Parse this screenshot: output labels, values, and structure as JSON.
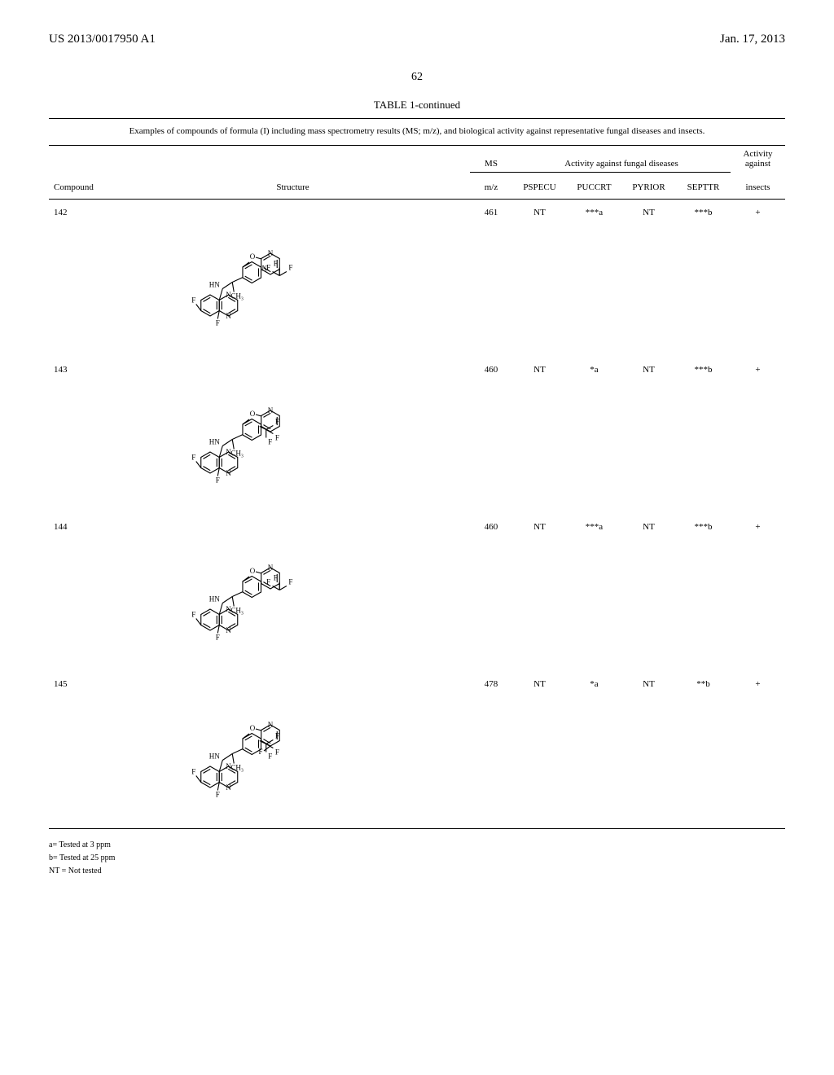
{
  "header": {
    "pub_number": "US 2013/0017950 A1",
    "pub_date": "Jan. 17, 2013"
  },
  "page_number": "62",
  "table": {
    "title": "TABLE 1-continued",
    "caption": "Examples of compounds of formula (I) including mass spectrometry results (MS; m/z), and biological activity against representative fungal diseases and insects.",
    "columns": {
      "compound": "Compound",
      "structure": "Structure",
      "ms_group": "MS",
      "ms_sub": "m/z",
      "fungal_group": "Activity against fungal diseases",
      "pspecu": "PSPECU",
      "puccrt": "PUCCRT",
      "pyrior": "PYRIOR",
      "septtr": "SEPTTR",
      "insects_group": "Activity against",
      "insects_sub": "insects"
    },
    "rows": [
      {
        "compound": "142",
        "mz": "461",
        "pspecu": "NT",
        "puccrt": "***a",
        "pyrior": "NT",
        "septtr": "***b",
        "insects": "+"
      },
      {
        "compound": "143",
        "mz": "460",
        "pspecu": "NT",
        "puccrt": "*a",
        "pyrior": "NT",
        "septtr": "***b",
        "insects": "+"
      },
      {
        "compound": "144",
        "mz": "460",
        "pspecu": "NT",
        "puccrt": "***a",
        "pyrior": "NT",
        "septtr": "***b",
        "insects": "+"
      },
      {
        "compound": "145",
        "mz": "478",
        "pspecu": "NT",
        "puccrt": "*a",
        "pyrior": "NT",
        "septtr": "**b",
        "insects": "+"
      }
    ]
  },
  "footnotes": {
    "a": "a= Tested at 3 ppm",
    "b": "b= Tested at 25 ppm",
    "nt": "NT = Not tested"
  },
  "chem_labels": {
    "F": "F",
    "HN": "HN",
    "CH3": "CH₃",
    "N": "N",
    "O": "O"
  },
  "style": {
    "font_family": "Times New Roman",
    "text_color": "#000000",
    "bg_color": "#ffffff",
    "rule_color": "#000000",
    "stroke_width": 1.1,
    "header_fontsize": 15,
    "body_fontsize": 11,
    "footnote_fontsize": 10
  }
}
